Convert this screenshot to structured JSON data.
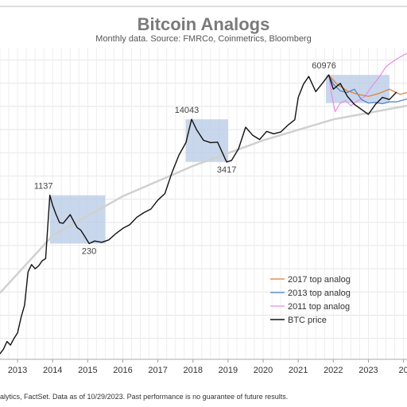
{
  "chart_data": {
    "type": "line",
    "title": "Bitcoin Analogs",
    "subtitle": "Monthly data.  Source: FMRCo, Coinmetrics, Bloomberg",
    "footnote": "alytics, FactSet. Data as of 10/29/2023. Past performance is no guarantee of future results.",
    "x_ticks": [
      "2013",
      "2014",
      "2015",
      "2016",
      "2017",
      "2018",
      "2019",
      "2020",
      "2021",
      "2022",
      "2023",
      "20"
    ],
    "xlim": [
      2012.5,
      2024.1
    ],
    "y_scale": "log",
    "ylim": [
      5,
      150000
    ],
    "grid": true,
    "legend_position": "bottom-right",
    "colors": {
      "btc": "#111111",
      "analog2017": "#e07b2f",
      "analog2013": "#4a7fc1",
      "analog2011": "#e98be8",
      "trend": "#d0d0d0",
      "highlight": "#b7c9e6"
    },
    "annotations": [
      {
        "label": "1137",
        "x": 2013.92,
        "y": 1137
      },
      {
        "label": "230",
        "x": 2015.04,
        "y": 230
      },
      {
        "label": "14043",
        "x": 2017.96,
        "y": 14043
      },
      {
        "label": "3417",
        "x": 2018.96,
        "y": 3417
      },
      {
        "label": "60976",
        "x": 2021.87,
        "y": 60976
      }
    ],
    "highlight_regions": [
      {
        "x": [
          2013.92,
          2015.5
        ],
        "y": [
          230,
          1137
        ]
      },
      {
        "x": [
          2017.79,
          2019.0
        ],
        "y": [
          3417,
          14043
        ]
      },
      {
        "x": [
          2021.79,
          2023.6
        ],
        "y": [
          24000,
          60976
        ]
      }
    ],
    "trend": {
      "name": "",
      "x": [
        2012.5,
        2014,
        2016,
        2018,
        2020,
        2022,
        2024.1
      ],
      "y": [
        45,
        300,
        1100,
        3000,
        7000,
        14000,
        22000
      ]
    },
    "legend": [
      "2017 top analog",
      "2013 top analog",
      "2011 top analog",
      "BTC price"
    ],
    "series": [
      {
        "name": "BTC price",
        "x": [
          2012.5,
          2012.6,
          2012.7,
          2012.8,
          2012.9,
          2013.0,
          2013.1,
          2013.2,
          2013.3,
          2013.4,
          2013.5,
          2013.6,
          2013.7,
          2013.8,
          2013.92,
          2014.0,
          2014.1,
          2014.2,
          2014.3,
          2014.4,
          2014.5,
          2014.6,
          2014.7,
          2014.8,
          2014.9,
          2015.04,
          2015.2,
          2015.4,
          2015.6,
          2015.8,
          2016.0,
          2016.2,
          2016.4,
          2016.6,
          2016.8,
          2017.0,
          2017.2,
          2017.4,
          2017.6,
          2017.8,
          2017.96,
          2018.1,
          2018.3,
          2018.5,
          2018.7,
          2018.96,
          2019.1,
          2019.3,
          2019.5,
          2019.7,
          2019.9,
          2020.1,
          2020.3,
          2020.5,
          2020.7,
          2020.9,
          2021.0,
          2021.15,
          2021.3,
          2021.5,
          2021.7,
          2021.87,
          2022.0,
          2022.2,
          2022.4,
          2022.6,
          2022.8,
          2023.0,
          2023.2,
          2023.4,
          2023.6,
          2023.8
        ],
        "y": [
          6,
          7,
          9,
          8,
          10,
          12,
          20,
          30,
          90,
          115,
          100,
          110,
          130,
          140,
          1137,
          820,
          600,
          460,
          450,
          520,
          600,
          480,
          390,
          360,
          300,
          230,
          250,
          240,
          260,
          320,
          380,
          430,
          550,
          640,
          720,
          970,
          1200,
          2400,
          4300,
          6500,
          14043,
          10000,
          7000,
          6500,
          6600,
          3417,
          3600,
          5300,
          10800,
          8300,
          7200,
          9400,
          8700,
          9200,
          11500,
          13800,
          29000,
          45000,
          58000,
          35000,
          47000,
          60976,
          38000,
          46000,
          30000,
          23000,
          19500,
          16500,
          23000,
          29000,
          27000,
          34500
        ]
      },
      {
        "name": "2017 top analog",
        "x": [
          2021.87,
          2022.1,
          2022.4,
          2022.7,
          2023.0,
          2023.3,
          2023.6,
          2023.9,
          2024.1
        ],
        "y": [
          60976,
          45000,
          36000,
          32000,
          30000,
          33000,
          38000,
          32000,
          34000
        ]
      },
      {
        "name": "2013 top analog",
        "x": [
          2021.87,
          2022.0,
          2022.2,
          2022.4,
          2022.6,
          2022.8,
          2023.0,
          2023.2,
          2023.4,
          2023.6,
          2023.8,
          2024.1
        ],
        "y": [
          60976,
          45000,
          36000,
          34000,
          38000,
          27000,
          24000,
          24500,
          23500,
          25000,
          25000,
          27500
        ]
      },
      {
        "name": "2011 top analog",
        "x": [
          2021.87,
          2021.95,
          2022.05,
          2022.2,
          2022.35,
          2022.5,
          2022.7,
          2022.9,
          2023.1,
          2023.3,
          2023.5,
          2023.7,
          2023.9,
          2024.1
        ],
        "y": [
          60976,
          32000,
          18000,
          24000,
          26000,
          22000,
          26000,
          30000,
          42000,
          56000,
          80000,
          95000,
          110000,
          125000
        ]
      }
    ]
  }
}
